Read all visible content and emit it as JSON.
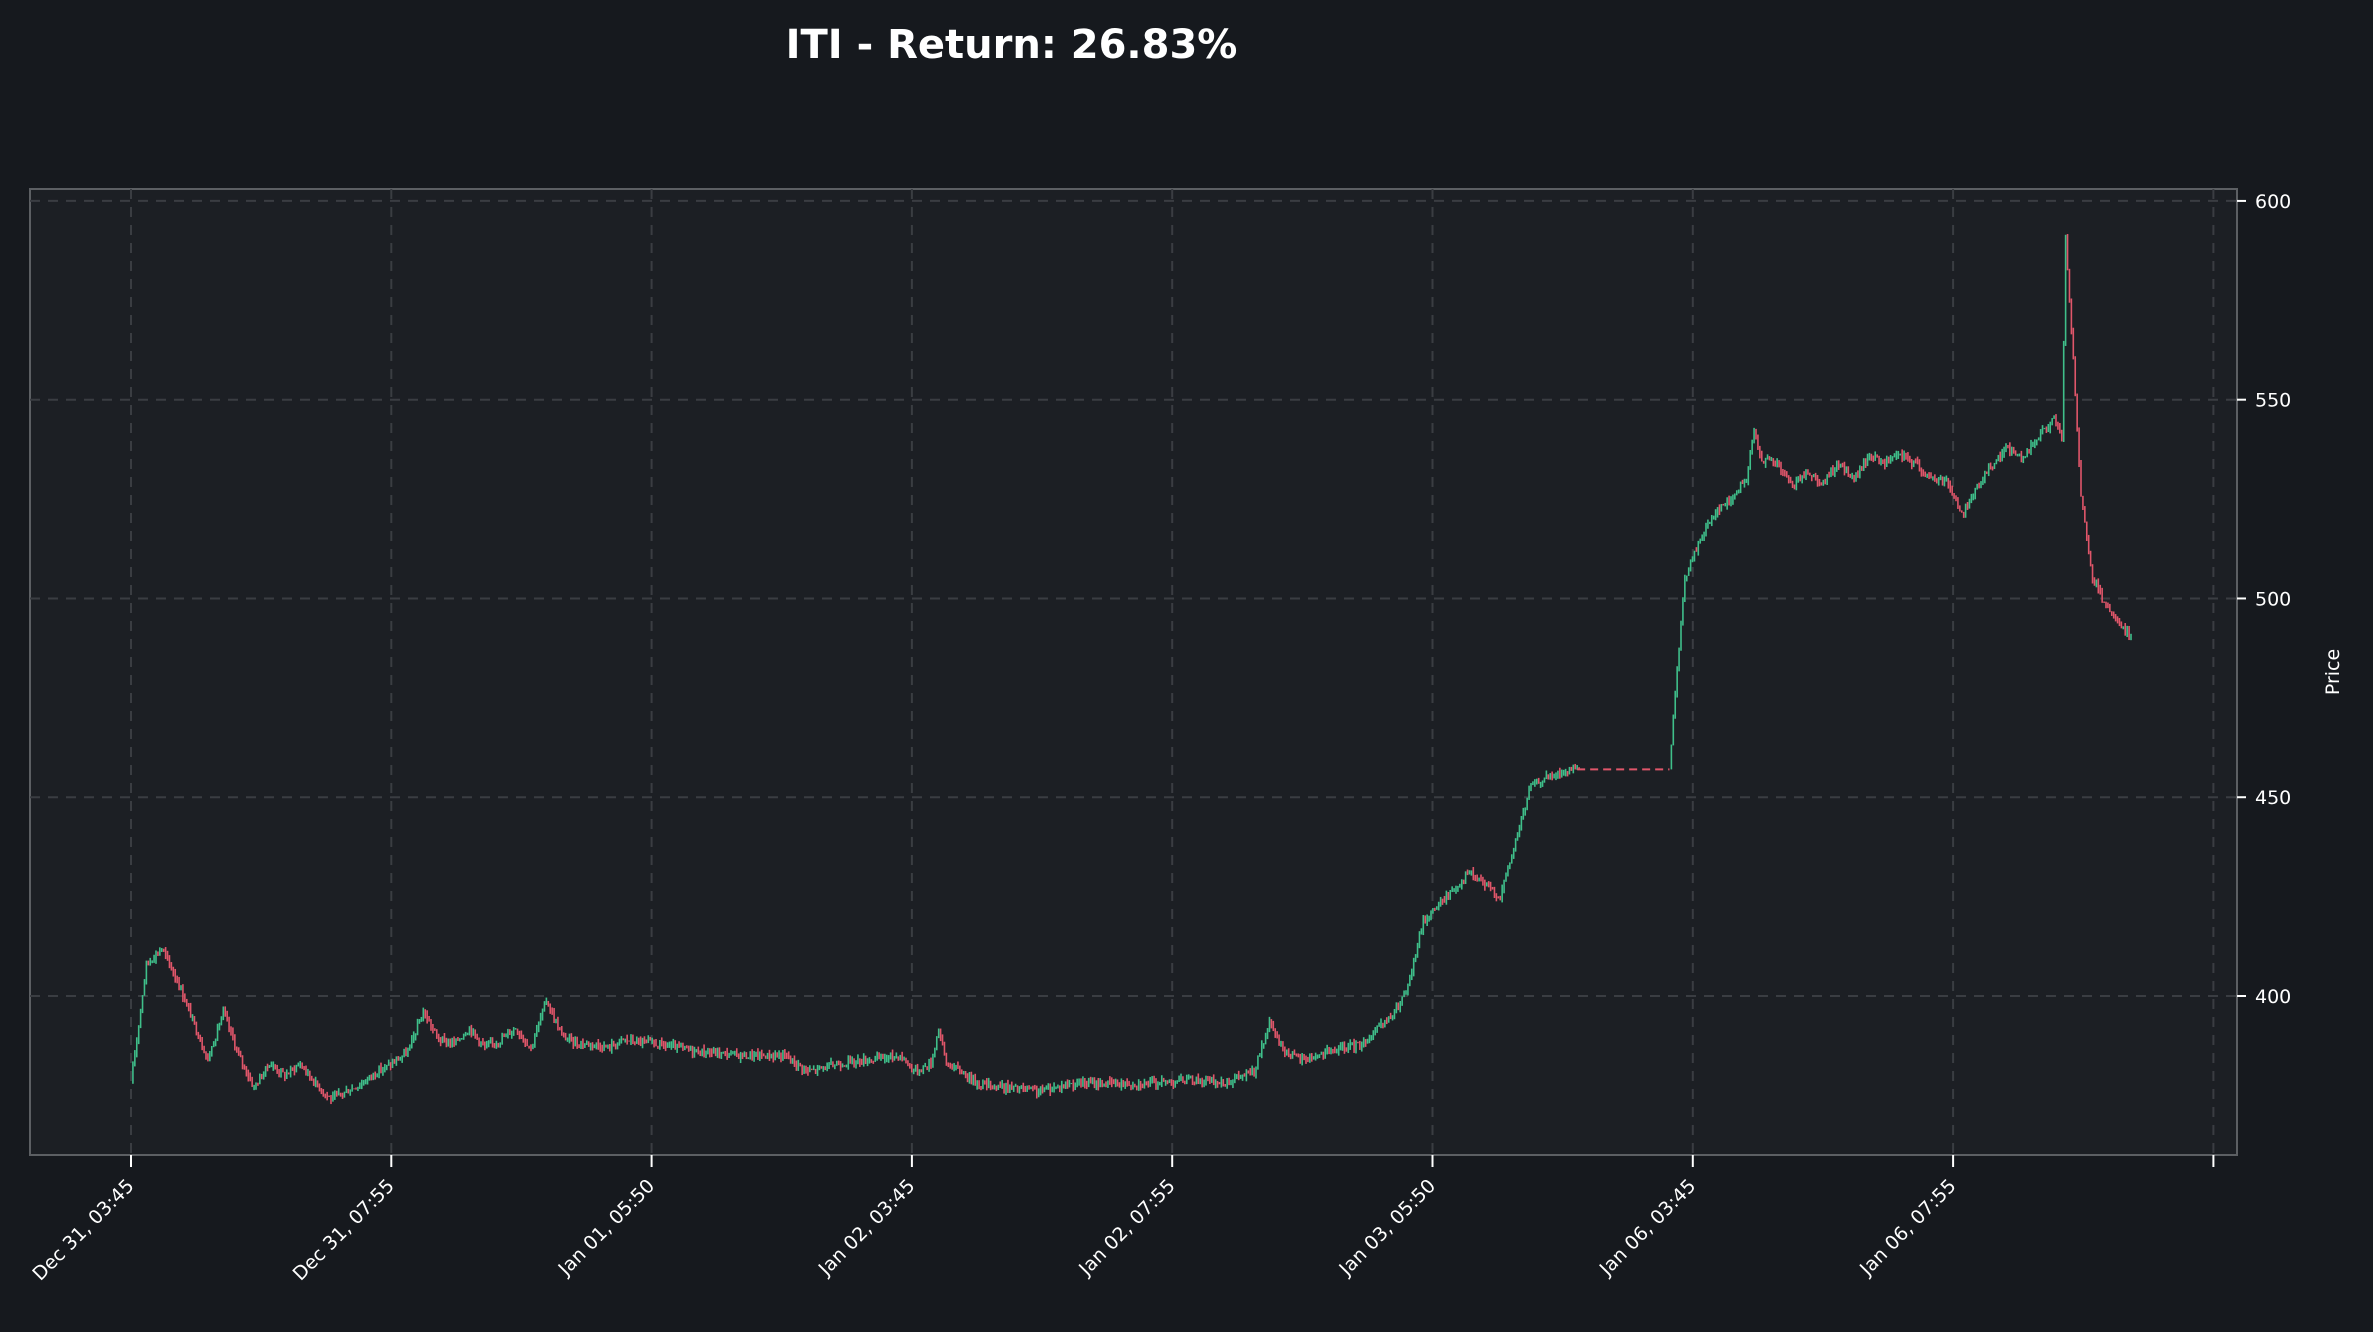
{
  "chart_data": {
    "type": "candlestick",
    "title": "ITI - Return: 26.83%",
    "xlabel": "",
    "ylabel": "Price",
    "ylim": [
      360,
      603
    ],
    "yticks": [
      400,
      450,
      500,
      550,
      600
    ],
    "xticks": [
      "Dec 31, 03:45",
      "Dec 31, 07:55",
      "Jan 01, 05:50",
      "Jan 02, 03:45",
      "Jan 02, 07:55",
      "Jan 03, 05:50",
      "Jan 06, 03:45",
      "Jan 06, 07:55"
    ],
    "grid": true,
    "y_axis_position": "right",
    "series": [
      {
        "values": [
          [
            0,
            378
          ],
          [
            4,
            408
          ],
          [
            8,
            412
          ],
          [
            12,
            404
          ],
          [
            16,
            394
          ],
          [
            20,
            384
          ],
          [
            24,
            396
          ],
          [
            28,
            385
          ],
          [
            32,
            377
          ],
          [
            36,
            383
          ],
          [
            40,
            380
          ],
          [
            44,
            383
          ],
          [
            48,
            378
          ],
          [
            52,
            374
          ],
          [
            56,
            376
          ],
          [
            60,
            378
          ],
          [
            64,
            381
          ],
          [
            68,
            383
          ],
          [
            72,
            386
          ],
          [
            76,
            396
          ],
          [
            80,
            389
          ],
          [
            84,
            388
          ],
          [
            88,
            392
          ],
          [
            92,
            387
          ],
          [
            96,
            389
          ],
          [
            100,
            392
          ],
          [
            104,
            387
          ],
          [
            108,
            399
          ],
          [
            112,
            390
          ],
          [
            116,
            388
          ],
          [
            120,
            388
          ],
          [
            124,
            387
          ],
          [
            128,
            389
          ],
          [
            136,
            388
          ],
          [
            148,
            386
          ],
          [
            160,
            385
          ],
          [
            170,
            385
          ],
          [
            176,
            381
          ],
          [
            184,
            383
          ],
          [
            192,
            384
          ],
          [
            200,
            385
          ],
          [
            204,
            381
          ],
          [
            208,
            383
          ],
          [
            210,
            392
          ],
          [
            212,
            383
          ],
          [
            216,
            381
          ],
          [
            220,
            378
          ],
          [
            228,
            377
          ],
          [
            236,
            376
          ],
          [
            244,
            378
          ],
          [
            252,
            378
          ],
          [
            264,
            378
          ],
          [
            276,
            379
          ],
          [
            284,
            378
          ],
          [
            292,
            381
          ],
          [
            296,
            393
          ],
          [
            300,
            386
          ],
          [
            304,
            384
          ],
          [
            312,
            386
          ],
          [
            320,
            388
          ],
          [
            328,
            395
          ],
          [
            332,
            402
          ],
          [
            336,
            419
          ],
          [
            340,
            423
          ],
          [
            344,
            427
          ],
          [
            348,
            431
          ],
          [
            352,
            428
          ],
          [
            356,
            425
          ],
          [
            360,
            439
          ],
          [
            364,
            453
          ],
          [
            368,
            455
          ],
          [
            372,
            456
          ],
          [
            376,
            457
          ],
          [
            384,
            457
          ],
          [
            392,
            457
          ],
          [
            400,
            457
          ],
          [
            402,
            482
          ],
          [
            404,
            505
          ],
          [
            408,
            515
          ],
          [
            412,
            522
          ],
          [
            416,
            525
          ],
          [
            420,
            530
          ],
          [
            422,
            542
          ],
          [
            424,
            535
          ],
          [
            428,
            534
          ],
          [
            432,
            528
          ],
          [
            436,
            532
          ],
          [
            440,
            529
          ],
          [
            444,
            534
          ],
          [
            448,
            530
          ],
          [
            452,
            536
          ],
          [
            456,
            534
          ],
          [
            460,
            536
          ],
          [
            464,
            534
          ],
          [
            468,
            530
          ],
          [
            472,
            530
          ],
          [
            476,
            521
          ],
          [
            480,
            528
          ],
          [
            484,
            534
          ],
          [
            488,
            538
          ],
          [
            492,
            535
          ],
          [
            496,
            541
          ],
          [
            500,
            545
          ],
          [
            502,
            540
          ],
          [
            503,
            590
          ],
          [
            505,
            560
          ],
          [
            507,
            525
          ],
          [
            510,
            505
          ],
          [
            514,
            497
          ],
          [
            518,
            492
          ],
          [
            520,
            491
          ]
        ]
      }
    ]
  }
}
